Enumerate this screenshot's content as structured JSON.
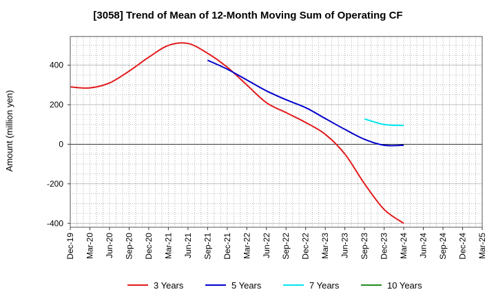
{
  "chart_data": {
    "type": "line",
    "title": "[3058]  Trend of Mean of 12-Month Moving Sum of Operating CF",
    "ylabel": "Amount (million yen)",
    "xlabel": "",
    "ylim": [
      -420,
      545
    ],
    "yticks": [
      400,
      200,
      0,
      -200,
      -400
    ],
    "xtick_labels": [
      "Dec-19",
      "Mar-20",
      "Jun-20",
      "Sep-20",
      "Dec-20",
      "Mar-21",
      "Jun-21",
      "Sep-21",
      "Dec-21",
      "Mar-22",
      "Jun-22",
      "Sep-22",
      "Dec-22",
      "Mar-23",
      "Jun-23",
      "Sep-23",
      "Dec-23",
      "Mar-24",
      "Jun-24",
      "Sep-24",
      "Dec-24",
      "Mar-25"
    ],
    "grid": true,
    "legend_position": "bottom",
    "series": [
      {
        "name": "3 Years",
        "color": "#e31a1c",
        "x": [
          0,
          1,
          2,
          3,
          4,
          5,
          6,
          7,
          8,
          9,
          10,
          11,
          12,
          13,
          14,
          15,
          16,
          17
        ],
        "values": [
          290,
          285,
          310,
          370,
          440,
          500,
          510,
          460,
          390,
          300,
          210,
          160,
          110,
          50,
          -50,
          -200,
          -330,
          -400
        ]
      },
      {
        "name": "5 Years",
        "color": "#0000cc",
        "x": [
          7,
          8,
          9,
          10,
          11,
          12,
          13,
          14,
          15,
          16,
          17
        ],
        "values": [
          425,
          380,
          325,
          270,
          225,
          185,
          130,
          75,
          25,
          -5,
          -5
        ]
      },
      {
        "name": "7 Years",
        "color": "#00e5ee",
        "x": [
          15,
          16,
          17
        ],
        "values": [
          128,
          100,
          95
        ]
      },
      {
        "name": "10 Years",
        "color": "#228b22",
        "x": [],
        "values": []
      }
    ]
  }
}
